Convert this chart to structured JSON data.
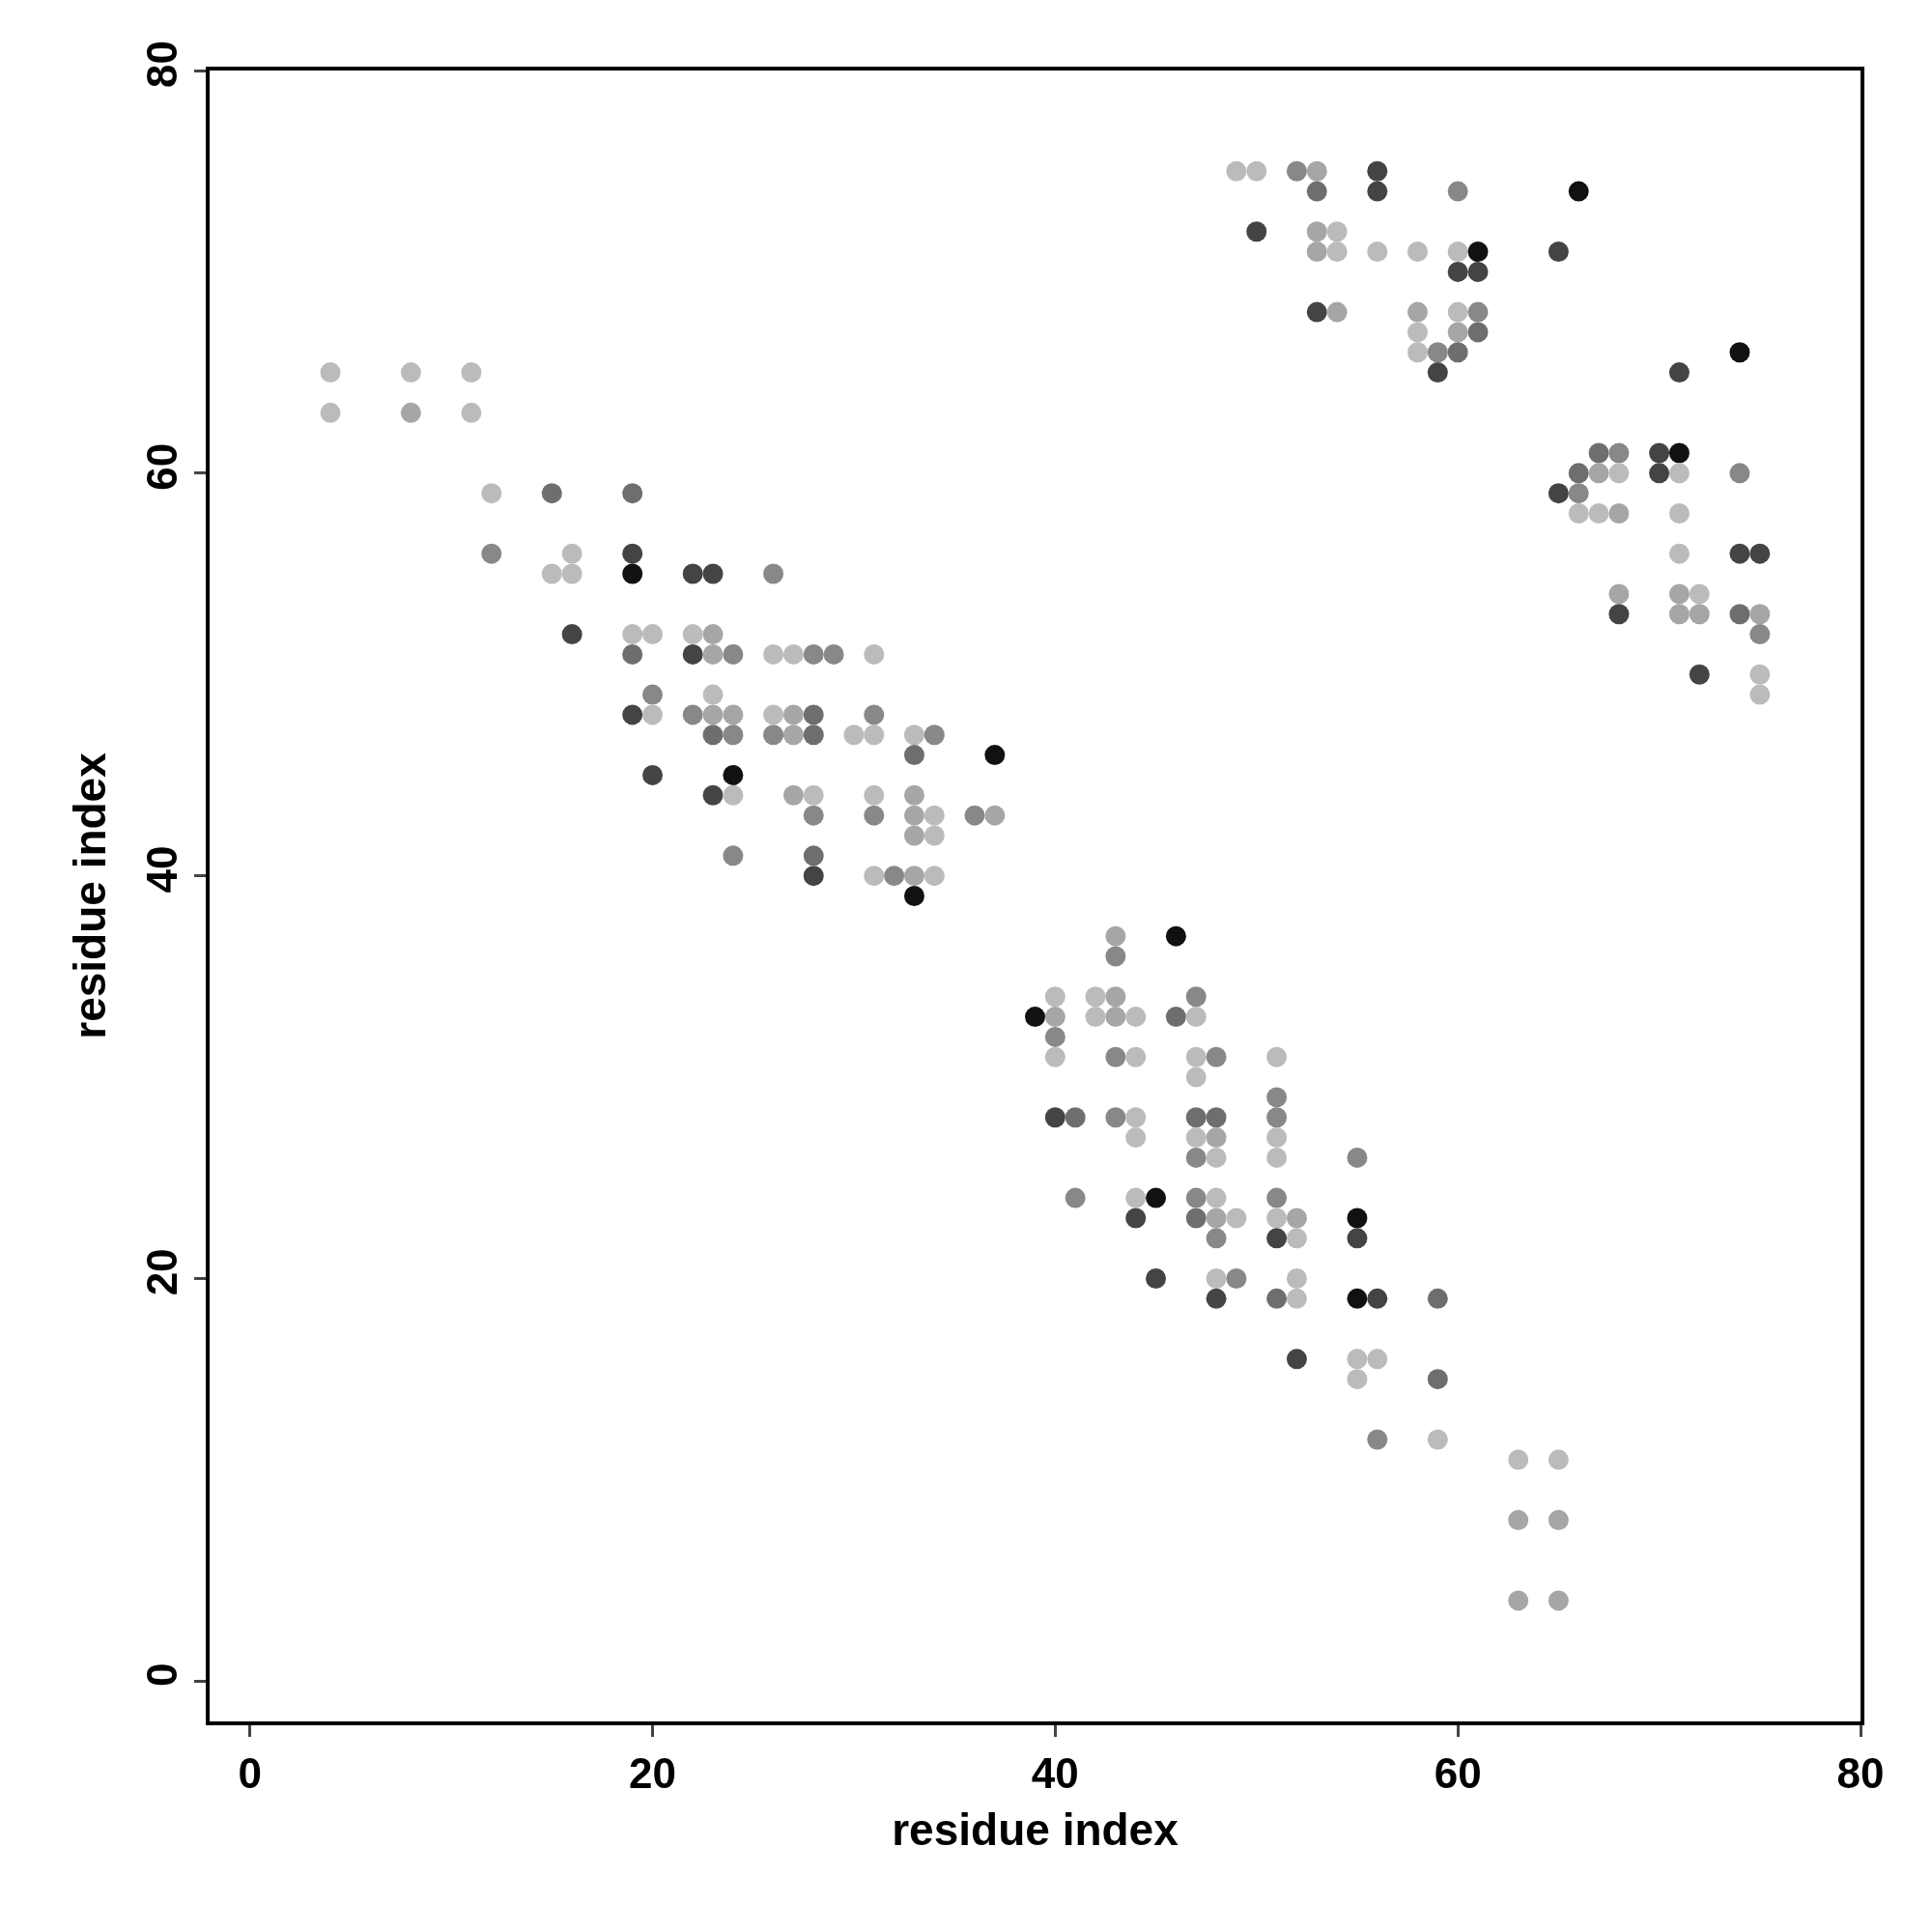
{
  "chart_data": {
    "type": "scatter",
    "xlabel": "residue index",
    "ylabel": "residue index",
    "xlim": [
      -2,
      80
    ],
    "ylim": [
      -2,
      80
    ],
    "xticks": [
      0,
      20,
      40,
      60,
      80
    ],
    "yticks": [
      0,
      20,
      40,
      60,
      80
    ],
    "grid": false,
    "marker": "circle",
    "series": [
      {
        "x": [
          4,
          8,
          11,
          4,
          8,
          11,
          12,
          15,
          19,
          12,
          16,
          19,
          15,
          16,
          19,
          22,
          23,
          26,
          16,
          19,
          20,
          22,
          23,
          19,
          22,
          23,
          24,
          26,
          27,
          28,
          29,
          31,
          20,
          23,
          19,
          20,
          22,
          23,
          24,
          26,
          27,
          28,
          31,
          23,
          24,
          26,
          27,
          28,
          30,
          31,
          33,
          34,
          33,
          37,
          20,
          24,
          23,
          24,
          27,
          28,
          31,
          33,
          28,
          31,
          33,
          34,
          36,
          37,
          33,
          34,
          24,
          28,
          28,
          31,
          32,
          33,
          34,
          33
        ],
        "values": [
          65,
          65,
          65,
          63,
          63,
          63,
          59,
          59,
          59,
          56,
          56,
          56,
          55,
          55,
          55,
          55,
          55,
          55,
          52,
          52,
          52,
          52,
          52,
          51,
          51,
          51,
          51,
          51,
          51,
          51,
          51,
          51,
          49,
          49,
          48,
          48,
          48,
          48,
          48,
          48,
          48,
          48,
          48,
          47,
          47,
          47,
          47,
          47,
          47,
          47,
          47,
          47,
          46,
          46,
          45,
          45,
          44,
          44,
          44,
          44,
          44,
          44,
          43,
          43,
          43,
          43,
          43,
          43,
          42,
          42,
          41,
          41,
          40,
          40,
          40,
          40,
          40,
          39
        ],
        "colors": [
          "#bbbbbb",
          "#bbbbbb",
          "#bbbbbb",
          "#bbbbbb",
          "#a6a6a6",
          "#bbbbbb",
          "#bbbbbb",
          "#6e6e6e",
          "#6e6e6e",
          "#888888",
          "#bbbbbb",
          "#444444",
          "#bbbbbb",
          "#bbbbbb",
          "#111111",
          "#444444",
          "#444444",
          "#888888",
          "#444444",
          "#bbbbbb",
          "#bbbbbb",
          "#bbbbbb",
          "#a6a6a6",
          "#6e6e6e",
          "#444444",
          "#a6a6a6",
          "#888888",
          "#bbbbbb",
          "#bbbbbb",
          "#888888",
          "#888888",
          "#bbbbbb",
          "#888888",
          "#bbbbbb",
          "#444444",
          "#bbbbbb",
          "#888888",
          "#a6a6a6",
          "#a6a6a6",
          "#bbbbbb",
          "#a6a6a6",
          "#6e6e6e",
          "#888888",
          "#6e6e6e",
          "#888888",
          "#888888",
          "#a6a6a6",
          "#6e6e6e",
          "#bbbbbb",
          "#bbbbbb",
          "#bbbbbb",
          "#888888",
          "#6e6e6e",
          "#111111",
          "#444444",
          "#111111",
          "#444444",
          "#bbbbbb",
          "#a6a6a6",
          "#bbbbbb",
          "#bbbbbb",
          "#a6a6a6",
          "#888888",
          "#888888",
          "#a6a6a6",
          "#bbbbbb",
          "#888888",
          "#a6a6a6",
          "#a6a6a6",
          "#bbbbbb",
          "#888888",
          "#6e6e6e",
          "#444444",
          "#bbbbbb",
          "#888888",
          "#a6a6a6",
          "#bbbbbb",
          "#111111"
        ]
      },
      {
        "x": [
          49,
          50,
          52,
          53,
          56,
          53,
          56,
          60,
          66,
          50,
          53,
          54,
          53,
          54,
          56,
          58,
          60,
          61,
          65,
          60,
          61,
          53,
          54,
          58,
          60,
          61,
          58,
          60,
          61,
          58,
          59,
          60,
          74,
          59,
          71,
          67,
          68,
          70,
          71,
          66,
          67,
          68,
          70,
          71,
          74,
          65,
          66,
          66,
          67,
          68,
          71,
          71,
          74,
          75,
          68,
          71,
          72,
          68,
          71,
          72,
          74,
          75,
          75,
          72,
          75,
          75
        ],
        "values": [
          75,
          75,
          75,
          75,
          75,
          74,
          74,
          74,
          74,
          72,
          72,
          72,
          71,
          71,
          71,
          71,
          71,
          71,
          71,
          70,
          70,
          68,
          68,
          68,
          68,
          68,
          67,
          67,
          67,
          66,
          66,
          66,
          66,
          65,
          65,
          61,
          61,
          61,
          61,
          60,
          60,
          60,
          60,
          60,
          60,
          59,
          59,
          58,
          58,
          58,
          58,
          56,
          56,
          56,
          54,
          54,
          54,
          53,
          53,
          53,
          53,
          53,
          52,
          50,
          50,
          49
        ],
        "colors": [
          "#bbbbbb",
          "#bbbbbb",
          "#888888",
          "#a6a6a6",
          "#444444",
          "#6e6e6e",
          "#444444",
          "#888888",
          "#111111",
          "#444444",
          "#a6a6a6",
          "#bbbbbb",
          "#a6a6a6",
          "#bbbbbb",
          "#bbbbbb",
          "#bbbbbb",
          "#bbbbbb",
          "#111111",
          "#444444",
          "#444444",
          "#444444",
          "#444444",
          "#a6a6a6",
          "#a6a6a6",
          "#bbbbbb",
          "#888888",
          "#bbbbbb",
          "#a6a6a6",
          "#6e6e6e",
          "#bbbbbb",
          "#888888",
          "#6e6e6e",
          "#111111",
          "#444444",
          "#444444",
          "#6e6e6e",
          "#888888",
          "#444444",
          "#111111",
          "#6e6e6e",
          "#a6a6a6",
          "#bbbbbb",
          "#444444",
          "#bbbbbb",
          "#888888",
          "#444444",
          "#888888",
          "#bbbbbb",
          "#bbbbbb",
          "#a6a6a6",
          "#bbbbbb",
          "#bbbbbb",
          "#444444",
          "#444444",
          "#a6a6a6",
          "#a6a6a6",
          "#bbbbbb",
          "#444444",
          "#a6a6a6",
          "#a6a6a6",
          "#6e6e6e",
          "#a6a6a6",
          "#888888",
          "#444444",
          "#bbbbbb",
          "#bbbbbb"
        ]
      },
      {
        "x": [
          43,
          46,
          43,
          40,
          42,
          43,
          47,
          39,
          40,
          42,
          43,
          44,
          46,
          47,
          40,
          40,
          43,
          44,
          47,
          48,
          51,
          47,
          51,
          40,
          41,
          43,
          44,
          47,
          48,
          51,
          44,
          47,
          48,
          51,
          47,
          48,
          51,
          55,
          41,
          44,
          45,
          47,
          48,
          51,
          44,
          47,
          48,
          49,
          51,
          52,
          55,
          48,
          51,
          52,
          55,
          45,
          48,
          49,
          52,
          48,
          51,
          52,
          55,
          56,
          59,
          52,
          55,
          56,
          55,
          59,
          56,
          59,
          63,
          65,
          63,
          65,
          63,
          65
        ],
        "values": [
          37,
          37,
          36,
          34,
          34,
          34,
          34,
          33,
          33,
          33,
          33,
          33,
          33,
          33,
          32,
          31,
          31,
          31,
          31,
          31,
          31,
          30,
          29,
          28,
          28,
          28,
          28,
          28,
          28,
          28,
          27,
          27,
          27,
          27,
          26,
          26,
          26,
          26,
          24,
          24,
          24,
          24,
          24,
          24,
          23,
          23,
          23,
          23,
          23,
          23,
          23,
          22,
          22,
          22,
          22,
          20,
          20,
          20,
          20,
          19,
          19,
          19,
          19,
          19,
          19,
          16,
          16,
          16,
          15,
          15,
          12,
          12,
          11,
          11,
          8,
          8,
          4,
          4
        ],
        "colors": [
          "#a6a6a6",
          "#111111",
          "#888888",
          "#bbbbbb",
          "#bbbbbb",
          "#a6a6a6",
          "#888888",
          "#111111",
          "#a6a6a6",
          "#bbbbbb",
          "#a6a6a6",
          "#bbbbbb",
          "#6e6e6e",
          "#bbbbbb",
          "#888888",
          "#bbbbbb",
          "#888888",
          "#bbbbbb",
          "#bbbbbb",
          "#888888",
          "#bbbbbb",
          "#bbbbbb",
          "#888888",
          "#444444",
          "#6e6e6e",
          "#888888",
          "#bbbbbb",
          "#6e6e6e",
          "#6e6e6e",
          "#888888",
          "#bbbbbb",
          "#bbbbbb",
          "#a6a6a6",
          "#bbbbbb",
          "#888888",
          "#bbbbbb",
          "#bbbbbb",
          "#888888",
          "#888888",
          "#bbbbbb",
          "#111111",
          "#888888",
          "#bbbbbb",
          "#888888",
          "#444444",
          "#6e6e6e",
          "#a6a6a6",
          "#bbbbbb",
          "#bbbbbb",
          "#a6a6a6",
          "#111111",
          "#888888",
          "#444444",
          "#bbbbbb",
          "#444444",
          "#444444",
          "#bbbbbb",
          "#888888",
          "#bbbbbb",
          "#444444",
          "#6e6e6e",
          "#bbbbbb",
          "#111111",
          "#444444",
          "#6e6e6e",
          "#444444",
          "#bbbbbb",
          "#bbbbbb",
          "#bbbbbb",
          "#6e6e6e",
          "#888888",
          "#bbbbbb",
          "#bbbbbb",
          "#bbbbbb",
          "#a6a6a6",
          "#a6a6a6",
          "#a6a6a6",
          "#a6a6a6"
        ]
      }
    ]
  }
}
